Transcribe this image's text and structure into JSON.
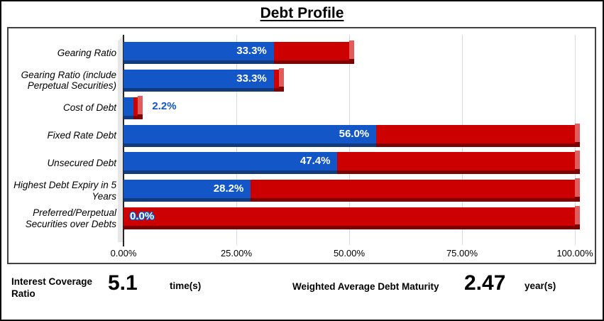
{
  "title": "Debt Profile",
  "colors": {
    "blue": "#1256c8",
    "blue_dark": "#123a7e",
    "red": "#cc0000",
    "red_dark": "#7e0000",
    "red_light": "#e25c5c",
    "gridline": "#d9d9d9",
    "wall": "#e7e7e7",
    "value_label_white": "#ffffff",
    "outside_label_blue": "#1256c8"
  },
  "chart_data": {
    "type": "bar",
    "orientation": "horizontal",
    "stacked": true,
    "title": "Debt Profile",
    "xlabel": "",
    "ylabel": "",
    "xlim": [
      0,
      100
    ],
    "grid": true,
    "x_ticks": [
      "0.00%",
      "25.00%",
      "50.00%",
      "75.00%",
      "100.00%"
    ],
    "x_tick_values": [
      0,
      25,
      50,
      75,
      100
    ],
    "categories": [
      "Gearing Ratio",
      "Gearing Ratio (include Perpetual Securities)",
      "Cost of Debt",
      "Fixed Rate Debt",
      "Unsecured Debt",
      "Highest Debt Expiry in 5 Years",
      "Preferred/Perpetual Securities over Debts"
    ],
    "series": [
      {
        "name": "value",
        "color": "#1256c8",
        "values": [
          33.3,
          33.3,
          2.2,
          56.0,
          47.4,
          28.2,
          0.0
        ]
      },
      {
        "name": "remainder",
        "color": "#cc0000",
        "values": [
          16.7,
          1.2,
          1.0,
          44.0,
          52.6,
          71.8,
          100.0
        ]
      }
    ],
    "value_labels": [
      "33.3%",
      "33.3%",
      "2.2%",
      "56.0%",
      "47.4%",
      "28.2%",
      "0.0%"
    ],
    "label_positions": [
      "inside-end",
      "inside-end",
      "outside-end",
      "inside-end",
      "inside-end",
      "inside-end",
      "inside-start"
    ]
  },
  "stats": [
    {
      "label": "Interest Coverage Ratio",
      "value": "5.1",
      "unit": "time(s)"
    },
    {
      "label": "Weighted Average Debt Maturity",
      "value": "2.47",
      "unit": "year(s)"
    }
  ]
}
